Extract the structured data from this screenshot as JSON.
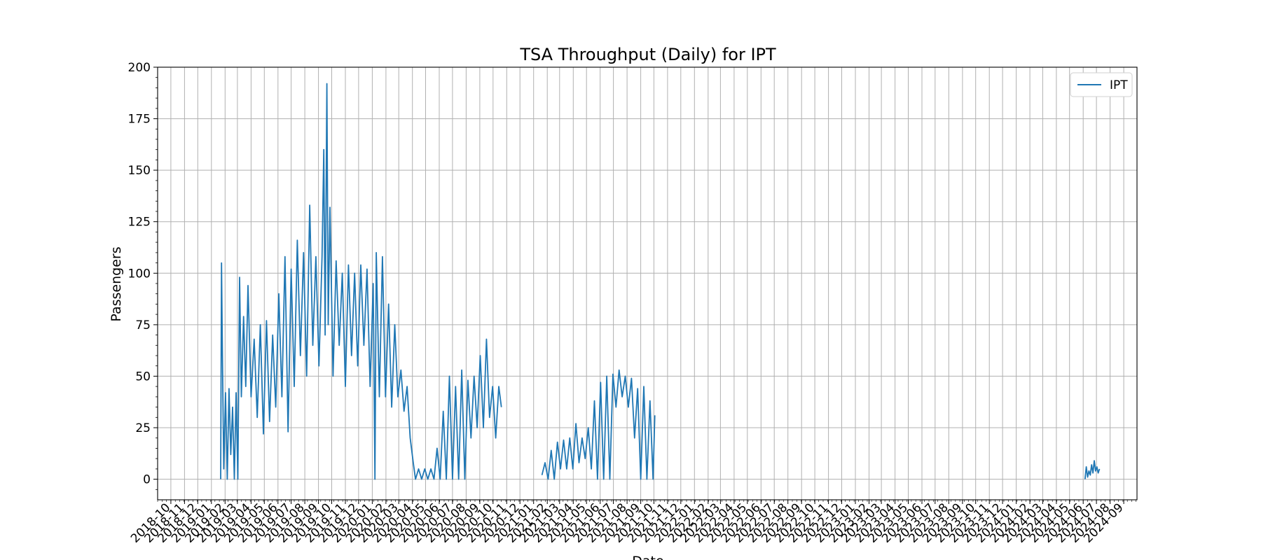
{
  "chart_data": {
    "type": "line",
    "title": "TSA Throughput (Daily) for IPT",
    "xlabel": "Date",
    "ylabel": "Passengers",
    "xlim": [
      "2018-09-01",
      "2024-10-01"
    ],
    "ylim": [
      -10,
      200
    ],
    "y_ticks": [
      0,
      25,
      50,
      75,
      100,
      125,
      150,
      175,
      200
    ],
    "x_ticks": [
      "2018-10",
      "2018-11",
      "2018-12",
      "2019-01",
      "2019-02",
      "2019-03",
      "2019-04",
      "2019-05",
      "2019-06",
      "2019-07",
      "2019-08",
      "2019-09",
      "2019-10",
      "2019-11",
      "2019-12",
      "2020-01",
      "2020-02",
      "2020-03",
      "2020-04",
      "2020-05",
      "2020-06",
      "2020-07",
      "2020-08",
      "2020-09",
      "2020-10",
      "2020-11",
      "2020-12",
      "2021-01",
      "2021-02",
      "2021-03",
      "2021-04",
      "2021-05",
      "2021-06",
      "2021-07",
      "2021-08",
      "2021-09",
      "2021-10",
      "2021-11",
      "2021-12",
      "2022-01",
      "2022-02",
      "2022-03",
      "2022-04",
      "2022-05",
      "2022-06",
      "2022-07",
      "2022-08",
      "2022-09",
      "2022-10",
      "2022-11",
      "2022-12",
      "2023-01",
      "2023-02",
      "2023-03",
      "2023-04",
      "2023-05",
      "2023-06",
      "2023-07",
      "2023-08",
      "2023-09",
      "2023-10",
      "2023-11",
      "2023-12",
      "2024-01",
      "2024-02",
      "2024-03",
      "2024-04",
      "2024-05",
      "2024-06",
      "2024-07",
      "2024-08",
      "2024-09"
    ],
    "grid": true,
    "legend_position": "top-right",
    "series": [
      {
        "name": "IPT",
        "color": "#1f77b4",
        "segments": [
          [
            [
              "2019-01-22",
              0
            ],
            [
              "2019-01-24",
              105
            ],
            [
              "2019-01-26",
              60
            ],
            [
              "2019-01-29",
              5
            ],
            [
              "2019-02-02",
              42
            ],
            [
              "2019-02-06",
              0
            ],
            [
              "2019-02-10",
              44
            ],
            [
              "2019-02-14",
              12
            ],
            [
              "2019-02-18",
              35
            ],
            [
              "2019-02-22",
              0
            ],
            [
              "2019-02-26",
              42
            ],
            [
              "2019-03-02",
              0
            ],
            [
              "2019-03-06",
              98
            ],
            [
              "2019-03-10",
              40
            ],
            [
              "2019-03-15",
              79
            ],
            [
              "2019-03-20",
              45
            ],
            [
              "2019-03-25",
              94
            ],
            [
              "2019-04-01",
              40
            ],
            [
              "2019-04-08",
              68
            ],
            [
              "2019-04-15",
              30
            ],
            [
              "2019-04-22",
              75
            ],
            [
              "2019-04-29",
              22
            ],
            [
              "2019-05-06",
              77
            ],
            [
              "2019-05-13",
              28
            ],
            [
              "2019-05-20",
              70
            ],
            [
              "2019-05-27",
              35
            ],
            [
              "2019-06-03",
              90
            ],
            [
              "2019-06-10",
              40
            ],
            [
              "2019-06-17",
              108
            ],
            [
              "2019-06-24",
              23
            ],
            [
              "2019-07-01",
              102
            ],
            [
              "2019-07-08",
              45
            ],
            [
              "2019-07-15",
              116
            ],
            [
              "2019-07-22",
              60
            ],
            [
              "2019-07-29",
              110
            ],
            [
              "2019-08-05",
              50
            ],
            [
              "2019-08-12",
              133
            ],
            [
              "2019-08-19",
              65
            ],
            [
              "2019-08-26",
              108
            ],
            [
              "2019-09-02",
              55
            ],
            [
              "2019-09-09",
              108
            ],
            [
              "2019-09-13",
              160
            ],
            [
              "2019-09-16",
              70
            ],
            [
              "2019-09-20",
              192
            ],
            [
              "2019-09-23",
              75
            ],
            [
              "2019-09-27",
              132
            ],
            [
              "2019-10-04",
              50
            ],
            [
              "2019-10-11",
              106
            ],
            [
              "2019-10-18",
              65
            ],
            [
              "2019-10-25",
              100
            ],
            [
              "2019-11-01",
              45
            ],
            [
              "2019-11-08",
              104
            ],
            [
              "2019-11-15",
              60
            ],
            [
              "2019-11-22",
              100
            ],
            [
              "2019-11-29",
              55
            ],
            [
              "2019-12-06",
              104
            ],
            [
              "2019-12-13",
              65
            ],
            [
              "2019-12-20",
              102
            ],
            [
              "2019-12-27",
              45
            ],
            [
              "2020-01-03",
              95
            ],
            [
              "2020-01-07",
              0
            ],
            [
              "2020-01-10",
              110
            ],
            [
              "2020-01-17",
              40
            ],
            [
              "2020-01-24",
              108
            ],
            [
              "2020-01-31",
              40
            ],
            [
              "2020-02-07",
              85
            ],
            [
              "2020-02-14",
              35
            ],
            [
              "2020-02-21",
              75
            ],
            [
              "2020-02-28",
              40
            ],
            [
              "2020-03-06",
              53
            ],
            [
              "2020-03-13",
              33
            ],
            [
              "2020-03-20",
              45
            ],
            [
              "2020-03-27",
              20
            ],
            [
              "2020-04-03",
              8
            ],
            [
              "2020-04-08",
              0
            ],
            [
              "2020-04-15",
              5
            ],
            [
              "2020-04-22",
              0
            ],
            [
              "2020-04-29",
              5
            ],
            [
              "2020-05-06",
              0
            ],
            [
              "2020-05-13",
              5
            ],
            [
              "2020-05-20",
              0
            ],
            [
              "2020-05-27",
              15
            ],
            [
              "2020-06-03",
              0
            ],
            [
              "2020-06-10",
              33
            ],
            [
              "2020-06-17",
              0
            ],
            [
              "2020-06-24",
              50
            ],
            [
              "2020-07-01",
              0
            ],
            [
              "2020-07-08",
              45
            ],
            [
              "2020-07-15",
              0
            ],
            [
              "2020-07-22",
              53
            ],
            [
              "2020-07-29",
              0
            ],
            [
              "2020-08-05",
              48
            ],
            [
              "2020-08-12",
              20
            ],
            [
              "2020-08-19",
              50
            ],
            [
              "2020-08-26",
              25
            ],
            [
              "2020-09-02",
              60
            ],
            [
              "2020-09-09",
              25
            ],
            [
              "2020-09-16",
              68
            ],
            [
              "2020-09-23",
              30
            ],
            [
              "2020-09-30",
              45
            ],
            [
              "2020-10-07",
              20
            ],
            [
              "2020-10-14",
              45
            ],
            [
              "2020-10-20",
              35
            ]
          ],
          [
            [
              "2021-01-20",
              2
            ],
            [
              "2021-01-27",
              8
            ],
            [
              "2021-02-03",
              0
            ],
            [
              "2021-02-10",
              14
            ],
            [
              "2021-02-17",
              0
            ],
            [
              "2021-02-24",
              18
            ],
            [
              "2021-03-03",
              5
            ],
            [
              "2021-03-10",
              19
            ],
            [
              "2021-03-17",
              5
            ],
            [
              "2021-03-24",
              20
            ],
            [
              "2021-03-31",
              5
            ],
            [
              "2021-04-07",
              27
            ],
            [
              "2021-04-14",
              8
            ],
            [
              "2021-04-21",
              20
            ],
            [
              "2021-04-28",
              10
            ],
            [
              "2021-05-05",
              25
            ],
            [
              "2021-05-12",
              5
            ],
            [
              "2021-05-19",
              38
            ],
            [
              "2021-05-26",
              0
            ],
            [
              "2021-06-02",
              47
            ],
            [
              "2021-06-09",
              0
            ],
            [
              "2021-06-16",
              50
            ],
            [
              "2021-06-23",
              0
            ],
            [
              "2021-06-30",
              51
            ],
            [
              "2021-07-07",
              35
            ],
            [
              "2021-07-14",
              53
            ],
            [
              "2021-07-21",
              40
            ],
            [
              "2021-07-28",
              50
            ],
            [
              "2021-08-04",
              35
            ],
            [
              "2021-08-11",
              49
            ],
            [
              "2021-08-18",
              20
            ],
            [
              "2021-08-25",
              44
            ],
            [
              "2021-09-01",
              0
            ],
            [
              "2021-09-08",
              45
            ],
            [
              "2021-09-15",
              0
            ],
            [
              "2021-09-22",
              38
            ],
            [
              "2021-09-29",
              0
            ],
            [
              "2021-10-03",
              31
            ]
          ],
          [
            [
              "2024-06-05",
              0
            ],
            [
              "2024-06-08",
              6
            ],
            [
              "2024-06-11",
              1
            ],
            [
              "2024-06-14",
              4
            ],
            [
              "2024-06-17",
              2
            ],
            [
              "2024-06-20",
              7
            ],
            [
              "2024-06-23",
              3
            ],
            [
              "2024-06-26",
              9
            ],
            [
              "2024-06-29",
              4
            ],
            [
              "2024-07-02",
              6
            ],
            [
              "2024-07-05",
              3
            ],
            [
              "2024-07-08",
              5
            ]
          ]
        ]
      }
    ]
  }
}
